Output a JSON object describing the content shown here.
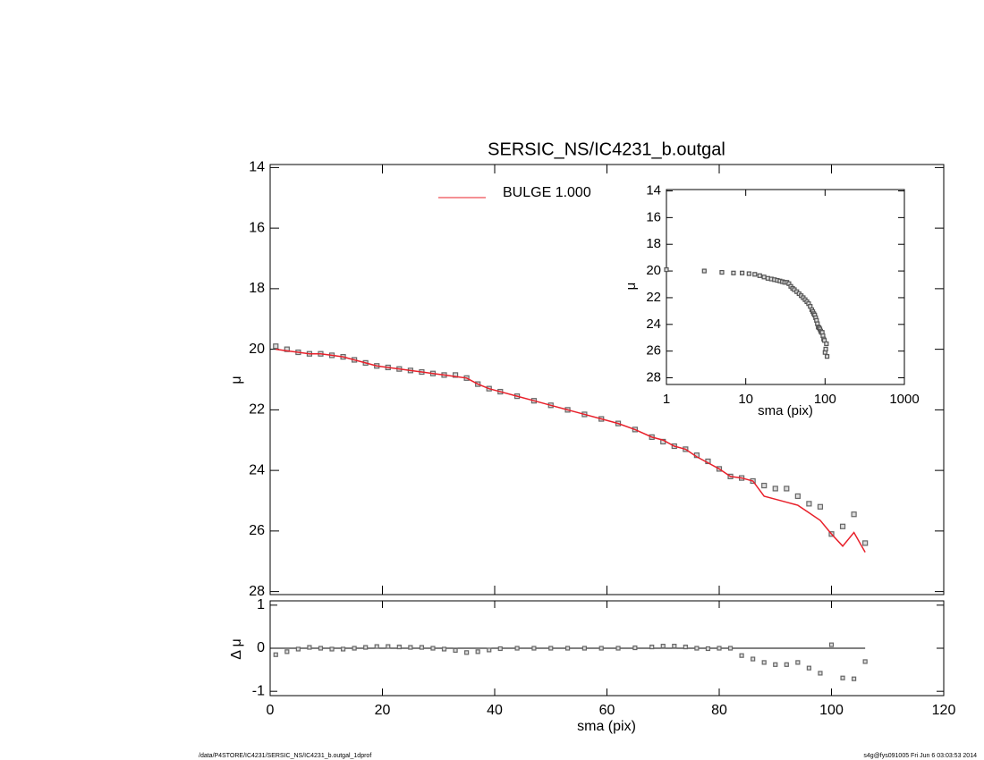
{
  "chart_data": [
    {
      "type": "line",
      "title": "SERSIC_NS/IC4231_b.outgal",
      "ylabel": "μ",
      "x": [
        1,
        3,
        5,
        7,
        9,
        11,
        13,
        15,
        17,
        19,
        21,
        23,
        25,
        27,
        29,
        31,
        33,
        35,
        37,
        39,
        41,
        44,
        47,
        50,
        53,
        56,
        59,
        62,
        65,
        68,
        70,
        72,
        74,
        76,
        78,
        80,
        82,
        84,
        86,
        88,
        90,
        92,
        94,
        96,
        98,
        100,
        102,
        104,
        106
      ],
      "series": [
        {
          "color": "#666666",
          "style": "markers",
          "values": [
            19.9,
            20.0,
            20.1,
            20.15,
            20.15,
            20.2,
            20.25,
            20.35,
            20.45,
            20.55,
            20.6,
            20.65,
            20.7,
            20.75,
            20.8,
            20.85,
            20.85,
            20.95,
            21.15,
            21.3,
            21.4,
            21.55,
            21.7,
            21.85,
            22.0,
            22.15,
            22.3,
            22.45,
            22.65,
            22.9,
            23.05,
            23.2,
            23.3,
            23.5,
            23.7,
            23.95,
            24.2,
            24.25,
            24.35,
            24.5,
            24.6,
            24.6,
            24.85,
            25.1,
            25.2,
            26.1,
            25.85,
            25.45,
            26.4
          ]
        },
        {
          "name": "BULGE  1.000",
          "color": "#e8202a",
          "style": "line",
          "values": [
            20.0,
            20.05,
            20.1,
            20.15,
            20.15,
            20.2,
            20.25,
            20.35,
            20.45,
            20.55,
            20.6,
            20.65,
            20.7,
            20.75,
            20.8,
            20.85,
            20.9,
            20.95,
            21.15,
            21.3,
            21.4,
            21.55,
            21.7,
            21.85,
            22.0,
            22.15,
            22.3,
            22.45,
            22.65,
            22.9,
            23.0,
            23.2,
            23.3,
            23.55,
            23.75,
            23.95,
            24.2,
            24.25,
            24.35,
            24.85,
            24.95,
            25.05,
            25.15,
            25.4,
            25.65,
            26.1,
            26.5,
            26.05,
            26.7
          ]
        }
      ],
      "xlim": [
        0,
        120
      ],
      "xticks": [
        0,
        20,
        40,
        60,
        80,
        100,
        120
      ],
      "ylim": [
        28.1,
        13.9
      ],
      "yticks": [
        14,
        16,
        18,
        20,
        22,
        24,
        26,
        28
      ]
    },
    {
      "type": "scatter",
      "ylabel": "Δ μ",
      "xlabel": "sma (pix)",
      "color": "#666666",
      "x": [
        1,
        3,
        5,
        7,
        9,
        11,
        13,
        15,
        17,
        19,
        21,
        23,
        25,
        27,
        29,
        31,
        33,
        35,
        37,
        39,
        41,
        44,
        47,
        50,
        53,
        56,
        59,
        62,
        65,
        68,
        70,
        72,
        74,
        76,
        78,
        80,
        82,
        84,
        86,
        88,
        90,
        92,
        94,
        96,
        98,
        100,
        102,
        104,
        106
      ],
      "values": [
        -0.15,
        -0.08,
        -0.02,
        0.02,
        0.0,
        -0.02,
        -0.02,
        0.0,
        0.02,
        0.04,
        0.04,
        0.03,
        0.02,
        0.02,
        0.0,
        -0.02,
        -0.05,
        -0.1,
        -0.08,
        -0.04,
        -0.01,
        0.0,
        0.0,
        0.0,
        0.0,
        0.0,
        0.0,
        0.0,
        0.01,
        0.03,
        0.05,
        0.05,
        0.03,
        0.0,
        -0.01,
        0.0,
        0.0,
        -0.17,
        -0.25,
        -0.33,
        -0.38,
        -0.38,
        -0.33,
        -0.46,
        -0.58,
        0.08,
        -0.69,
        -0.71,
        -0.31
      ],
      "reference_line": 0,
      "xlim": [
        0,
        120
      ],
      "xticks": [
        0,
        20,
        40,
        60,
        80,
        100,
        120
      ],
      "ylim": [
        -1.1,
        1.1
      ],
      "yticks": [
        -1,
        0,
        1
      ]
    },
    {
      "type": "line",
      "ylabel": "μ",
      "xlabel": "sma (pix)",
      "log_x": true,
      "x": [
        1,
        3,
        5,
        7,
        9,
        11,
        13,
        15,
        17,
        19,
        21,
        23,
        25,
        27,
        29,
        31,
        33,
        35,
        37,
        39,
        41,
        44,
        47,
        50,
        53,
        56,
        59,
        62,
        65,
        68,
        70,
        72,
        74,
        76,
        78,
        80,
        82,
        84,
        86,
        88,
        90,
        92,
        94,
        96,
        98,
        100,
        102,
        104,
        106
      ],
      "series": [
        {
          "color": "#555555",
          "style": "markers",
          "values": [
            19.9,
            20.0,
            20.1,
            20.15,
            20.15,
            20.2,
            20.25,
            20.35,
            20.45,
            20.55,
            20.6,
            20.65,
            20.7,
            20.75,
            20.8,
            20.85,
            20.85,
            20.95,
            21.15,
            21.3,
            21.4,
            21.55,
            21.7,
            21.85,
            22.0,
            22.15,
            22.3,
            22.45,
            22.65,
            22.9,
            23.05,
            23.2,
            23.3,
            23.5,
            23.7,
            23.95,
            24.2,
            24.25,
            24.35,
            24.5,
            24.6,
            24.6,
            24.85,
            25.1,
            25.2,
            26.1,
            25.85,
            25.45,
            26.4
          ]
        }
      ],
      "xlim": [
        1,
        1000
      ],
      "xticks": [
        1,
        10,
        100,
        1000
      ],
      "ylim": [
        28.5,
        13.9
      ],
      "yticks": [
        14,
        16,
        18,
        20,
        22,
        24,
        26,
        28
      ]
    }
  ],
  "footer": {
    "left": "/data/P4STORE/IC4231/SERSIC_NS/IC4231_b.outgal_1dprof",
    "right": "s4g@fys091005  Fri Jun  6 03:03:53 2014"
  }
}
